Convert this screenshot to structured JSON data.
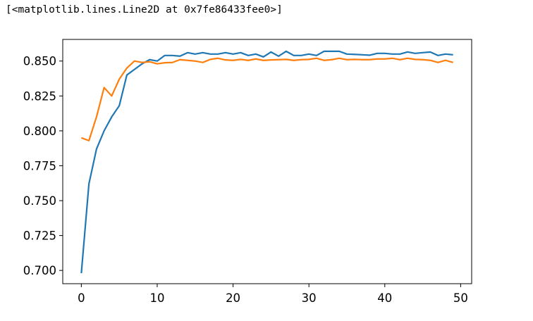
{
  "output_text": "[<matplotlib.lines.Line2D at 0x7fe86433fee0>]",
  "chart_data": {
    "type": "line",
    "title": "",
    "xlabel": "",
    "ylabel": "",
    "xlim": [
      -2.45,
      51.45
    ],
    "ylim": [
      0.6905,
      0.8655
    ],
    "x_ticks": [
      0,
      10,
      20,
      30,
      40,
      50
    ],
    "y_ticks": [
      0.7,
      0.725,
      0.75,
      0.775,
      0.8,
      0.825,
      0.85
    ],
    "y_tick_labels": [
      "0.700",
      "0.725",
      "0.750",
      "0.775",
      "0.800",
      "0.825",
      "0.850"
    ],
    "grid": false,
    "legend": "none",
    "x": [
      0,
      1,
      2,
      3,
      4,
      5,
      6,
      7,
      8,
      9,
      10,
      11,
      12,
      13,
      14,
      15,
      16,
      17,
      18,
      19,
      20,
      21,
      22,
      23,
      24,
      25,
      26,
      27,
      28,
      29,
      30,
      31,
      32,
      33,
      34,
      35,
      36,
      37,
      38,
      39,
      40,
      41,
      42,
      43,
      44,
      45,
      46,
      47,
      48,
      49
    ],
    "series": [
      {
        "color": "#1f77b4",
        "values": [
          0.698,
          0.762,
          0.787,
          0.8,
          0.81,
          0.818,
          0.84,
          0.844,
          0.848,
          0.851,
          0.85,
          0.854,
          0.854,
          0.8535,
          0.856,
          0.855,
          0.856,
          0.855,
          0.855,
          0.856,
          0.855,
          0.856,
          0.854,
          0.855,
          0.853,
          0.8565,
          0.8535,
          0.857,
          0.854,
          0.854,
          0.855,
          0.854,
          0.857,
          0.857,
          0.857,
          0.855,
          0.8548,
          0.8545,
          0.8542,
          0.8555,
          0.8555,
          0.855,
          0.855,
          0.8565,
          0.8555,
          0.856,
          0.8565,
          0.854,
          0.855,
          0.8545
        ]
      },
      {
        "color": "#ff7f0e",
        "values": [
          0.795,
          0.793,
          0.81,
          0.831,
          0.825,
          0.837,
          0.845,
          0.85,
          0.849,
          0.8495,
          0.848,
          0.8488,
          0.849,
          0.851,
          0.8505,
          0.85,
          0.849,
          0.8512,
          0.852,
          0.8508,
          0.8505,
          0.8512,
          0.8505,
          0.8515,
          0.8505,
          0.8508,
          0.851,
          0.8512,
          0.8505,
          0.851,
          0.8512,
          0.852,
          0.8505,
          0.851,
          0.852,
          0.851,
          0.8512,
          0.851,
          0.851,
          0.8515,
          0.8515,
          0.852,
          0.851,
          0.852,
          0.8512,
          0.851,
          0.8505,
          0.849,
          0.8505,
          0.849
        ]
      }
    ]
  }
}
